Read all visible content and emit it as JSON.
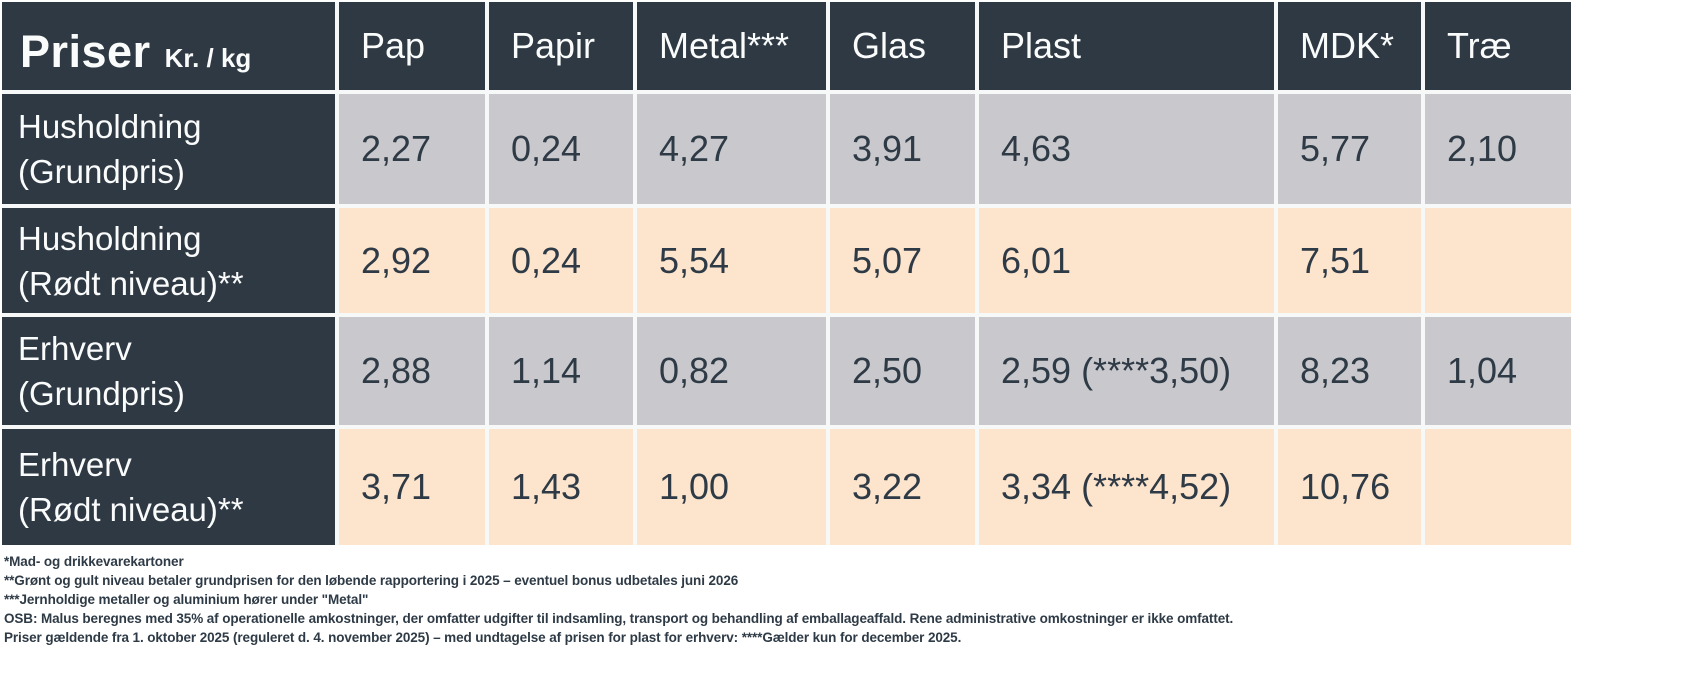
{
  "table": {
    "title": "Priser",
    "unit": "Kr. / kg",
    "columns": [
      "Pap",
      "Papir",
      "Metal***",
      "Glas",
      "Plast",
      "MDK*",
      "Træ"
    ],
    "rows": [
      {
        "label_line1": "Husholdning",
        "label_line2": "(Grundpris)",
        "values": [
          "2,27",
          "0,24",
          "4,27",
          "3,91",
          "4,63",
          "5,77",
          "2,10"
        ],
        "variant": "gray"
      },
      {
        "label_line1": "Husholdning",
        "label_line2": "(Rødt niveau)**",
        "values": [
          "2,92",
          "0,24",
          "5,54",
          "5,07",
          "6,01",
          "7,51",
          ""
        ],
        "variant": "peach"
      },
      {
        "label_line1": "Erhverv",
        "label_line2": "(Grundpris)",
        "values": [
          "2,88",
          "1,14",
          "0,82",
          "2,50",
          "2,59 (****3,50)",
          "8,23",
          "1,04"
        ],
        "variant": "gray"
      },
      {
        "label_line1": "Erhverv",
        "label_line2": "(Rødt niveau)**",
        "values": [
          "3,71",
          "1,43",
          "1,00",
          "3,22",
          "3,34 (****4,52)",
          "10,76",
          ""
        ],
        "variant": "peach"
      }
    ]
  },
  "footnotes": [
    "*Mad- og drikkevarekartoner",
    "**Grønt og gult niveau betaler grundprisen for den løbende rapportering i 2025 – eventuel bonus udbetales juni 2026",
    "***Jernholdige metaller og aluminium hører under \"Metal\"",
    "OSB: Malus beregnes med 35% af operationelle amkostninger, der omfatter udgifter til indsamling, transport og behandling af emballageaffald. Rene administrative omkostninger er ikke omfattet.",
    "Priser gældende fra 1. oktober 2025 (reguleret d. 4. november 2025) – med undtagelse af prisen for plast for erhverv: ****Gælder kun for december 2025."
  ],
  "colors": {
    "header_bg": "#2e3944",
    "gray_cell": "#c9c9cd",
    "peach_cell": "#fce4cd",
    "text_dark": "#2e3a45",
    "grid_gap": "#f7f8f8"
  },
  "chart_data": {
    "type": "table",
    "title": "Priser Kr. / kg",
    "columns": [
      "Pap",
      "Papir",
      "Metal***",
      "Glas",
      "Plast",
      "MDK*",
      "Træ"
    ],
    "row_labels": [
      "Husholdning (Grundpris)",
      "Husholdning (Rødt niveau)**",
      "Erhverv (Grundpris)",
      "Erhverv (Rødt niveau)**"
    ],
    "values": [
      [
        2.27,
        0.24,
        4.27,
        3.91,
        4.63,
        5.77,
        2.1
      ],
      [
        2.92,
        0.24,
        5.54,
        5.07,
        6.01,
        7.51,
        null
      ],
      [
        2.88,
        1.14,
        0.82,
        2.5,
        2.59,
        8.23,
        1.04
      ],
      [
        3.71,
        1.43,
        1.0,
        3.22,
        3.34,
        10.76,
        null
      ]
    ],
    "notes": "Plast erhverv grundpris ****3,50 og rødt niveau ****4,52 gælder kun for december 2025"
  }
}
